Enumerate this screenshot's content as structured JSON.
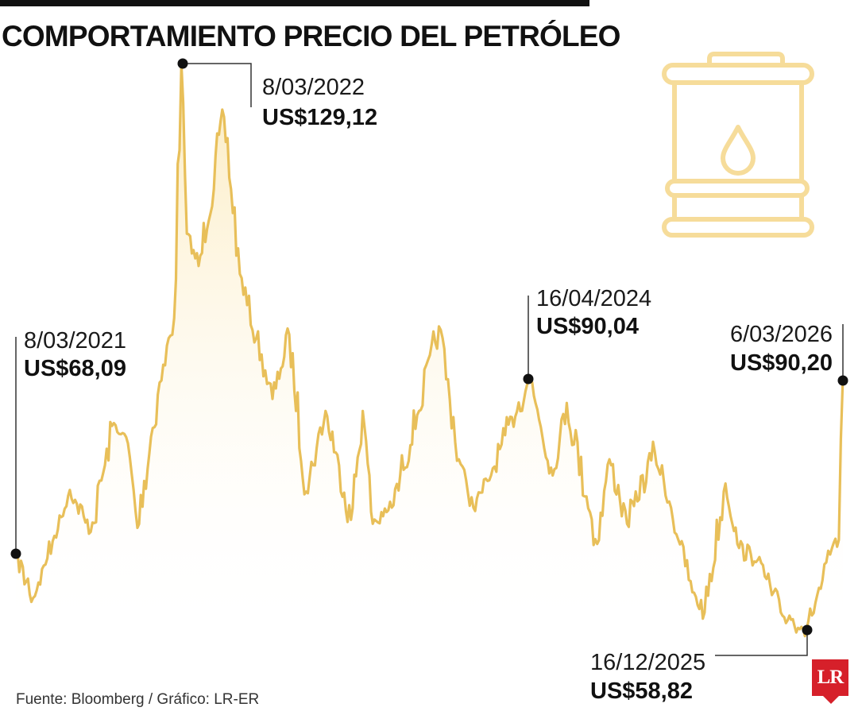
{
  "header": {
    "title": "COMPORTAMIENTO PRECIO DEL PETRÓLEO"
  },
  "footer": {
    "source": "Fuente: Bloomberg / Gráfico: LR-ER",
    "logo_text": "LR"
  },
  "icons": {
    "illustration": "oil-barrel-icon",
    "logo": "lr-logo"
  },
  "colors": {
    "line": "#e8bf59",
    "area_top": "#fbe7b2",
    "barrel": "#f6dc9a",
    "logo": "#d6202a"
  },
  "chart_data": {
    "type": "area",
    "title": "COMPORTAMIENTO PRECIO DEL PETRÓLEO",
    "xlabel": "",
    "ylabel": "",
    "x_range": [
      "2021-03-08",
      "2026-03-06"
    ],
    "ylim": [
      50,
      135
    ],
    "grid": false,
    "legend": "none",
    "series": [
      {
        "x": [
          "2021-03-08",
          "2021-04-15",
          "2021-06-01",
          "2021-07-05",
          "2021-08-20",
          "2021-10-10",
          "2021-11-10",
          "2021-12-01",
          "2022-01-15",
          "2022-02-20",
          "2022-03-08",
          "2022-03-20",
          "2022-04-15",
          "2022-06-10",
          "2022-07-15",
          "2022-08-20",
          "2022-09-25",
          "2022-11-01",
          "2022-12-08",
          "2023-01-20",
          "2023-03-17",
          "2023-04-12",
          "2023-05-04",
          "2023-06-15",
          "2023-08-10",
          "2023-09-27",
          "2023-11-10",
          "2023-12-12",
          "2024-01-20",
          "2024-02-20",
          "2024-04-16",
          "2024-06-04",
          "2024-07-05",
          "2024-09-10",
          "2024-10-07",
          "2024-11-15",
          "2025-01-15",
          "2025-02-20",
          "2025-04-08",
          "2025-05-05",
          "2025-06-20",
          "2025-07-20",
          "2025-08-30",
          "2025-10-20",
          "2025-12-16",
          "2026-01-20",
          "2026-02-10",
          "2026-02-25",
          "2026-03-06"
        ],
        "values": [
          68.09,
          62.8,
          70.5,
          76.2,
          71.0,
          84.5,
          82.0,
          71.5,
          88.0,
          97.5,
          129.12,
          108.0,
          104.0,
          122.5,
          103.0,
          95.0,
          87.5,
          95.5,
          76.0,
          86.0,
          72.5,
          86.0,
          72.0,
          74.0,
          85.5,
          96.5,
          80.0,
          74.0,
          78.0,
          83.0,
          90.04,
          78.0,
          87.0,
          69.5,
          80.0,
          72.0,
          81.0,
          74.0,
          63.5,
          61.0,
          77.0,
          69.0,
          67.5,
          61.0,
          58.82,
          65.0,
          69.0,
          70.0,
          90.2
        ]
      }
    ],
    "annotations": [
      {
        "date": "8/03/2021",
        "value": "US$68,09"
      },
      {
        "date": "8/03/2022",
        "value": "US$129,12"
      },
      {
        "date": "16/04/2024",
        "value": "US$90,04"
      },
      {
        "date": "6/03/2026",
        "value": "US$90,20"
      },
      {
        "date": "16/12/2025",
        "value": "US$58,82"
      }
    ]
  }
}
